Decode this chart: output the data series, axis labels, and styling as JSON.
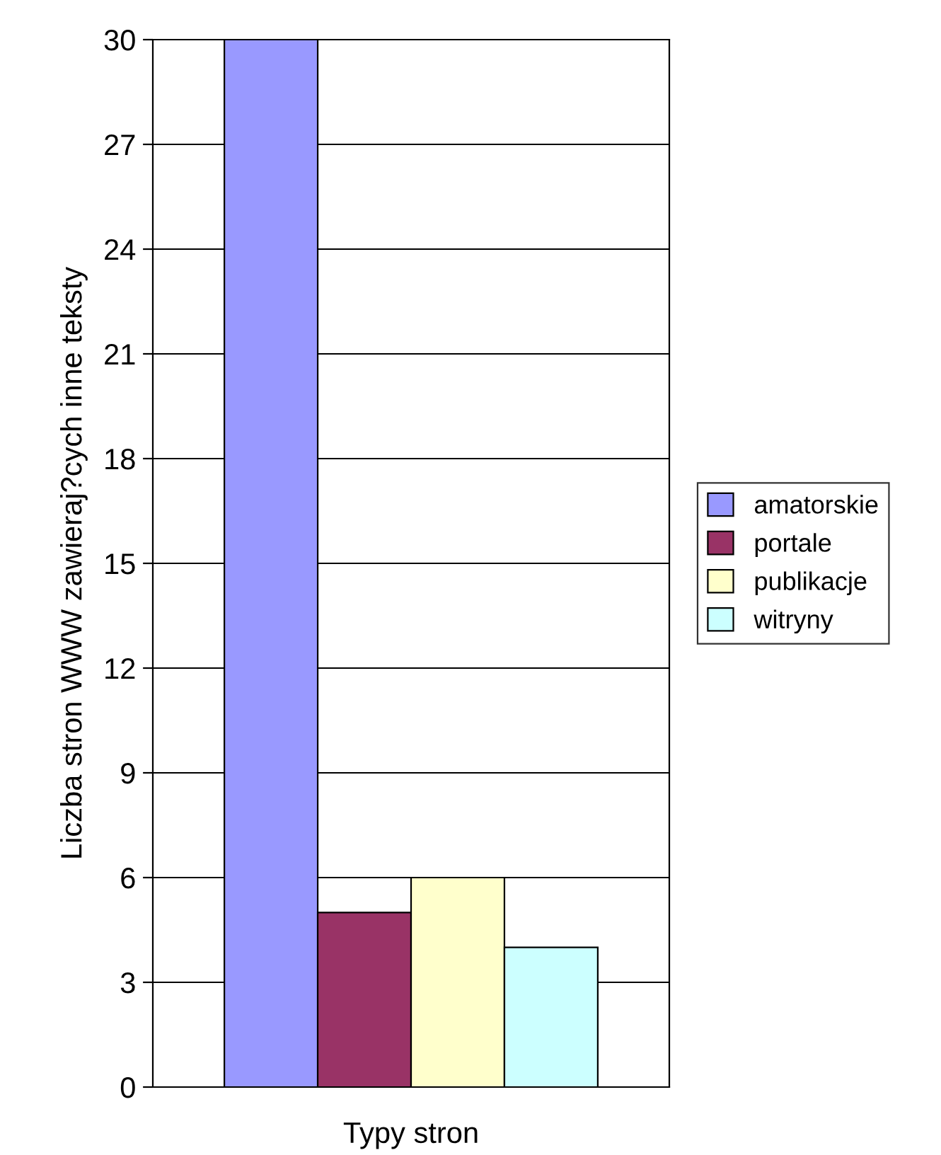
{
  "chart_data": {
    "type": "bar",
    "xlabel": "Typy stron",
    "ylabel": "Liczba stron WWW zawieraj?cych inne teksty",
    "categories": [
      null
    ],
    "series": [
      {
        "name": "amatorskie",
        "color": "#9999ff",
        "values": [
          30
        ]
      },
      {
        "name": "portale",
        "color": "#993366",
        "values": [
          5
        ]
      },
      {
        "name": "publikacje",
        "color": "#ffffcc",
        "values": [
          6
        ]
      },
      {
        "name": "witryny",
        "color": "#ccffff",
        "values": [
          4
        ]
      }
    ],
    "ylim": [
      0,
      30
    ],
    "yticks": [
      0,
      3,
      6,
      9,
      12,
      15,
      18,
      21,
      24,
      27,
      30
    ],
    "grid": "y",
    "legend": "right"
  }
}
